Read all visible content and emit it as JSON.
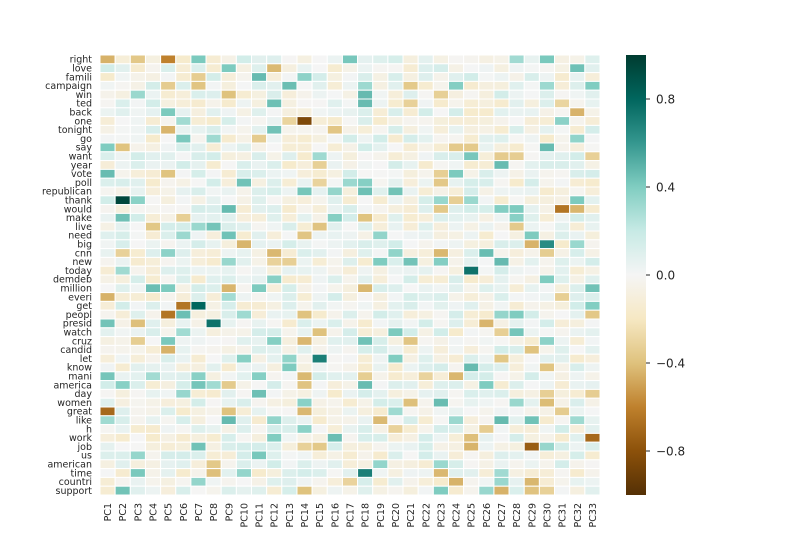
{
  "chart_data": {
    "type": "heatmap",
    "rows": [
      "right",
      "love",
      "famili",
      "campaign",
      "win",
      "ted",
      "back",
      "one",
      "tonight",
      "go",
      "say",
      "want",
      "year",
      "vote",
      "poll",
      "republican",
      "thank",
      "would",
      "make",
      "live",
      "need",
      "big",
      "cnn",
      "new",
      "today",
      "demdeb",
      "million",
      "everi",
      "get",
      "peopl",
      "presid",
      "watch",
      "cruz",
      "candid",
      "let",
      "know",
      "mani",
      "america",
      "day",
      "women",
      "great",
      "like",
      "h",
      "work",
      "job",
      "us",
      "american",
      "time",
      "countri",
      "support"
    ],
    "columns": [
      "PC1",
      "PC2",
      "PC3",
      "PC4",
      "PC5",
      "PC6",
      "PC7",
      "PC8",
      "PC9",
      "PC10",
      "PC11",
      "PC12",
      "PC13",
      "PC14",
      "PC15",
      "PC16",
      "PC17",
      "PC18",
      "PC19",
      "PC20",
      "PC21",
      "PC22",
      "PC23",
      "PC24",
      "PC25",
      "PC26",
      "PC27",
      "PC28",
      "PC29",
      "PC30",
      "PC31",
      "PC32",
      "PC33"
    ],
    "value_range": [
      -1.0,
      1.0
    ],
    "colormap": "BrBG",
    "colorbar_ticks": [
      0.8,
      0.4,
      0.0,
      -0.4,
      -0.8
    ],
    "colorbar_tick_labels": [
      "0.8",
      "0.4",
      "0.0",
      "−0.4",
      "−0.8"
    ],
    "grid": false,
    "notable_values": [
      {
        "row": "thank",
        "col": "PC2",
        "value": 0.95
      },
      {
        "row": "one",
        "col": "PC14",
        "value": -0.85
      },
      {
        "row": "get",
        "col": "PC7",
        "value": 0.8
      },
      {
        "row": "presid",
        "col": "PC8",
        "value": 0.75
      },
      {
        "row": "today",
        "col": "PC25",
        "value": 0.75
      },
      {
        "row": "get",
        "col": "PC6",
        "value": -0.65
      },
      {
        "row": "peopl",
        "col": "PC5",
        "value": -0.65
      },
      {
        "row": "great",
        "col": "PC1",
        "value": -0.7
      },
      {
        "row": "job",
        "col": "PC29",
        "value": -0.75
      },
      {
        "row": "work",
        "col": "PC33",
        "value": -0.7
      },
      {
        "row": "would",
        "col": "PC31",
        "value": -0.65
      },
      {
        "row": "let",
        "col": "PC15",
        "value": 0.7
      },
      {
        "row": "time",
        "col": "PC18",
        "value": 0.7
      },
      {
        "row": "big",
        "col": "PC30",
        "value": 0.65
      },
      {
        "row": "right",
        "col": "PC5",
        "value": -0.6
      }
    ]
  }
}
